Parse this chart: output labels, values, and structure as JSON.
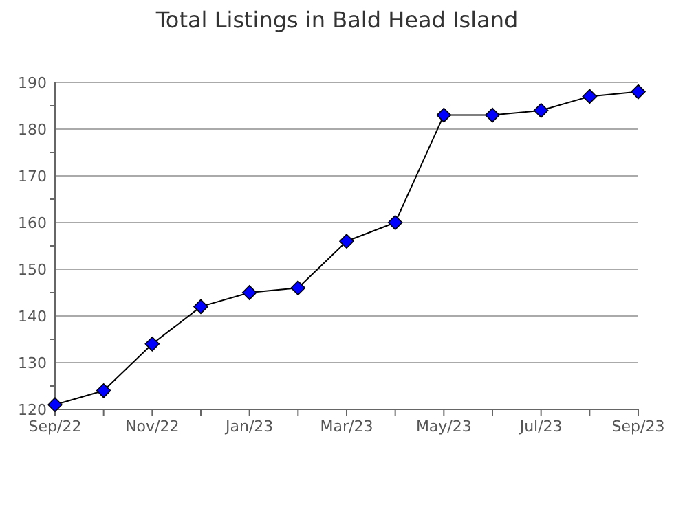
{
  "chart_data": {
    "type": "line",
    "title": "Total Listings in Bald Head Island",
    "categories": [
      "Sep/22",
      null,
      "Nov/22",
      null,
      "Jan/23",
      null,
      "Mar/23",
      null,
      "May/23",
      null,
      "Jul/23",
      null,
      "Sep/23"
    ],
    "series": [
      {
        "color": "#0000ff",
        "values": [
          121,
          124,
          134,
          142,
          145,
          146,
          156,
          160,
          183,
          183,
          184,
          187,
          188
        ]
      }
    ],
    "ylim": [
      120,
      190
    ],
    "yticks": [
      120,
      {
        "value": 125,
        "label": null
      },
      130,
      {
        "value": 135,
        "label": null
      },
      140,
      {
        "value": 145,
        "label": null
      },
      150,
      {
        "value": 155,
        "label": null
      },
      160,
      {
        "value": 165,
        "label": null
      },
      170,
      {
        "value": 175,
        "label": null
      },
      180,
      {
        "value": 185,
        "label": null
      },
      190
    ],
    "grid": "y",
    "marker": "diamond",
    "line_style": "solid"
  }
}
